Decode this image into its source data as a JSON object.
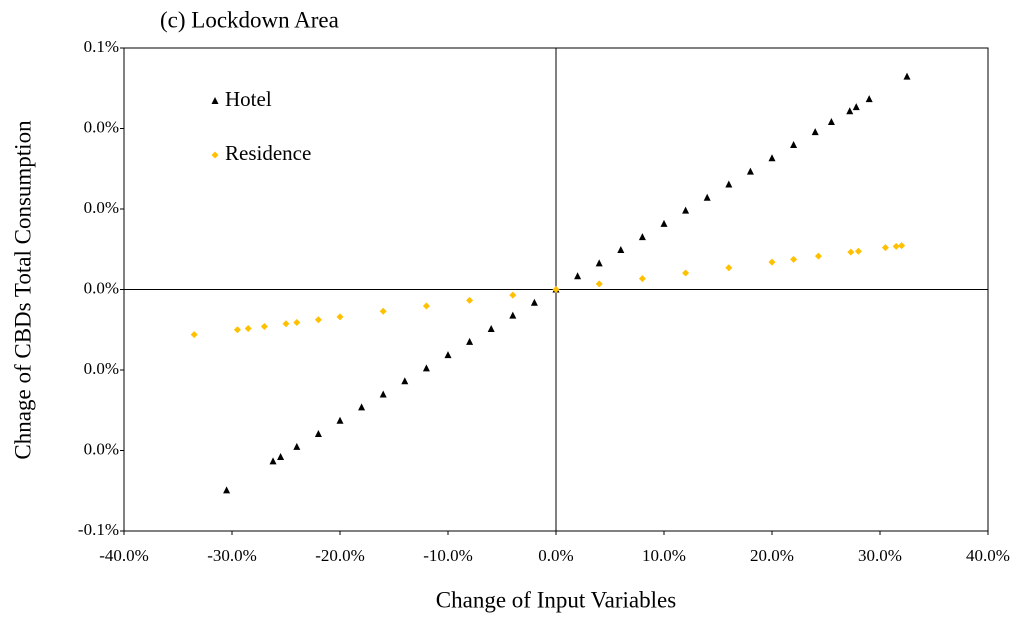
{
  "chart_data": {
    "type": "scatter",
    "title": "(c) Lockdown Area",
    "x_label": "Change of Input Variables",
    "y_label": "Chnage of CBDs Total Consumption",
    "xlim": [
      -40,
      40
    ],
    "xticks": [
      {
        "value": -40,
        "label": "-40.0%"
      },
      {
        "value": -30,
        "label": "-30.0%"
      },
      {
        "value": -20,
        "label": "-20.0%"
      },
      {
        "value": -10,
        "label": "-10.0%"
      },
      {
        "value": 0,
        "label": "0.0%"
      },
      {
        "value": 10,
        "label": "10.0%"
      },
      {
        "value": 20,
        "label": "20.0%"
      },
      {
        "value": 30,
        "label": "30.0%"
      },
      {
        "value": 40,
        "label": "40.0%"
      }
    ],
    "ylim": [
      -0.06,
      0.06
    ],
    "yticks": [
      {
        "value": -0.06,
        "label": "-0.1%"
      },
      {
        "value": -0.04,
        "label": "0.0%"
      },
      {
        "value": -0.02,
        "label": "0.0%"
      },
      {
        "value": 0,
        "label": "0.0%"
      },
      {
        "value": 0.02,
        "label": "0.0%"
      },
      {
        "value": 0.04,
        "label": "0.0%"
      },
      {
        "value": 0.06,
        "label": "0.1%"
      }
    ],
    "legend": "upper left",
    "series": [
      {
        "name": "Hotel",
        "color": "#000000",
        "marker": "triangle",
        "x": [
          -30.5,
          -26.2,
          -25.5,
          -24,
          -22,
          -20,
          -18,
          -16,
          -14,
          -12,
          -10,
          -8,
          -6,
          -4,
          -2,
          0,
          2,
          4,
          6,
          8,
          10,
          12,
          14,
          16,
          18,
          20,
          22,
          24,
          25.5,
          27.2,
          27.8,
          29,
          32.5
        ],
        "values": [
          -0.0499,
          -0.0427,
          -0.0416,
          -0.0391,
          -0.0359,
          -0.0326,
          -0.0293,
          -0.0261,
          -0.0228,
          -0.0196,
          -0.0163,
          -0.013,
          -0.0098,
          -0.0065,
          -0.0033,
          0,
          0.0033,
          0.0065,
          0.0098,
          0.013,
          0.0163,
          0.0196,
          0.0228,
          0.0261,
          0.0293,
          0.0326,
          0.0359,
          0.0391,
          0.0416,
          0.0443,
          0.0453,
          0.0473,
          0.0529
        ]
      },
      {
        "name": "Residence",
        "color": "#ffc000",
        "marker": "diamond",
        "x": [
          -33.5,
          -29.5,
          -28.5,
          -27,
          -25,
          -24,
          -22,
          -20,
          -16,
          -12,
          -8,
          -4,
          0,
          4,
          8,
          12,
          16,
          20,
          22,
          24.3,
          27.3,
          28,
          30.5,
          31.5,
          32
        ],
        "values": [
          -0.0112,
          -0.01,
          -0.0097,
          -0.0092,
          -0.0085,
          -0.0082,
          -0.0075,
          -0.0068,
          -0.0054,
          -0.0041,
          -0.0027,
          -0.0014,
          0,
          0.0014,
          0.0027,
          0.0041,
          0.0054,
          0.0068,
          0.0075,
          0.0083,
          0.0093,
          0.0095,
          0.0104,
          0.0107,
          0.0109
        ]
      }
    ]
  }
}
